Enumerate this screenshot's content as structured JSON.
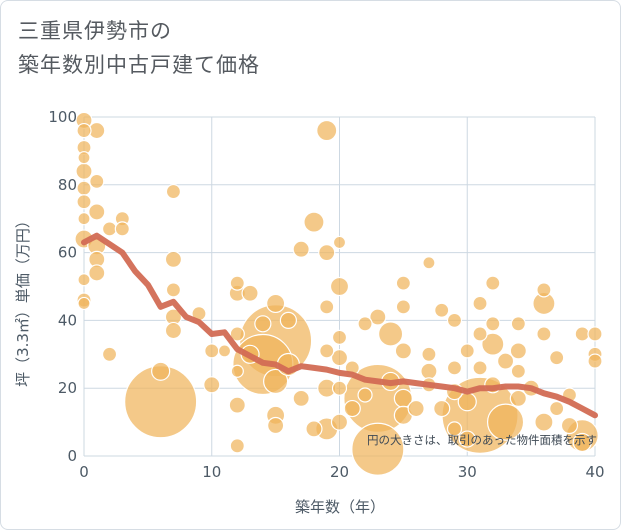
{
  "title_lines": [
    "三重県伊勢市の",
    "築年数別中古戸建て価格"
  ],
  "colors": {
    "bubble": "#f0b45c",
    "line": "#d26b54",
    "grid": "#cdd8e2",
    "plot_bg": "#ffffff"
  },
  "chart_data": {
    "type": "scatter",
    "title": "三重県伊勢市の築年数別中古戸建て価格",
    "xlabel": "築年数（年）",
    "ylabel": "坪（3.3㎡）単価（万円）",
    "xlim": [
      0,
      40
    ],
    "ylim": [
      0,
      100
    ],
    "x_ticks": [
      0,
      10,
      20,
      30,
      40
    ],
    "y_ticks": [
      0,
      20,
      40,
      60,
      80,
      100
    ],
    "grid": true,
    "annotation": "円の大きさは、取引のあった物件面積を示す",
    "bubbles": [
      {
        "x": 0,
        "y": 99,
        "s": 8
      },
      {
        "x": 0,
        "y": 96,
        "s": 7
      },
      {
        "x": 0,
        "y": 91,
        "s": 7
      },
      {
        "x": 0,
        "y": 88,
        "s": 6
      },
      {
        "x": 0,
        "y": 84,
        "s": 8
      },
      {
        "x": 0,
        "y": 79,
        "s": 7
      },
      {
        "x": 0,
        "y": 75,
        "s": 7
      },
      {
        "x": 0,
        "y": 70,
        "s": 6
      },
      {
        "x": 0,
        "y": 64,
        "s": 9
      },
      {
        "x": 0,
        "y": 52,
        "s": 6
      },
      {
        "x": 0,
        "y": 46,
        "s": 7
      },
      {
        "x": 0,
        "y": 45,
        "s": 6
      },
      {
        "x": 1,
        "y": 96,
        "s": 8
      },
      {
        "x": 1,
        "y": 81,
        "s": 7
      },
      {
        "x": 1,
        "y": 72,
        "s": 8
      },
      {
        "x": 1,
        "y": 62,
        "s": 9
      },
      {
        "x": 1,
        "y": 58,
        "s": 8
      },
      {
        "x": 1,
        "y": 54,
        "s": 8
      },
      {
        "x": 2,
        "y": 30,
        "s": 7
      },
      {
        "x": 2,
        "y": 67,
        "s": 7
      },
      {
        "x": 3,
        "y": 70,
        "s": 7
      },
      {
        "x": 3,
        "y": 67,
        "s": 7
      },
      {
        "x": 6,
        "y": 16,
        "s": 36
      },
      {
        "x": 6,
        "y": 25,
        "s": 9
      },
      {
        "x": 7,
        "y": 78,
        "s": 7
      },
      {
        "x": 7,
        "y": 58,
        "s": 8
      },
      {
        "x": 7,
        "y": 49,
        "s": 7
      },
      {
        "x": 7,
        "y": 41,
        "s": 8
      },
      {
        "x": 7,
        "y": 37,
        "s": 8
      },
      {
        "x": 9,
        "y": 42,
        "s": 7
      },
      {
        "x": 10,
        "y": 31,
        "s": 7
      },
      {
        "x": 10,
        "y": 21,
        "s": 8
      },
      {
        "x": 11,
        "y": 31,
        "s": 6
      },
      {
        "x": 12,
        "y": 51,
        "s": 7
      },
      {
        "x": 12,
        "y": 48,
        "s": 8
      },
      {
        "x": 12,
        "y": 36,
        "s": 7
      },
      {
        "x": 12,
        "y": 25,
        "s": 6
      },
      {
        "x": 12,
        "y": 15,
        "s": 8
      },
      {
        "x": 12,
        "y": 3,
        "s": 7
      },
      {
        "x": 13,
        "y": 48,
        "s": 8
      },
      {
        "x": 13,
        "y": 30,
        "s": 9
      },
      {
        "x": 14,
        "y": 39,
        "s": 8
      },
      {
        "x": 14,
        "y": 27,
        "s": 30
      },
      {
        "x": 15,
        "y": 34,
        "s": 36
      },
      {
        "x": 15,
        "y": 45,
        "s": 9
      },
      {
        "x": 15,
        "y": 22,
        "s": 12
      },
      {
        "x": 15,
        "y": 12,
        "s": 9
      },
      {
        "x": 15,
        "y": 9,
        "s": 8
      },
      {
        "x": 16,
        "y": 40,
        "s": 8
      },
      {
        "x": 16,
        "y": 27,
        "s": 11
      },
      {
        "x": 17,
        "y": 61,
        "s": 8
      },
      {
        "x": 17,
        "y": 17,
        "s": 8
      },
      {
        "x": 18,
        "y": 69,
        "s": 10
      },
      {
        "x": 18,
        "y": 8,
        "s": 8
      },
      {
        "x": 19,
        "y": 96,
        "s": 10
      },
      {
        "x": 19,
        "y": 60,
        "s": 8
      },
      {
        "x": 19,
        "y": 44,
        "s": 7
      },
      {
        "x": 19,
        "y": 31,
        "s": 7
      },
      {
        "x": 19,
        "y": 20,
        "s": 9
      },
      {
        "x": 19,
        "y": 8,
        "s": 11
      },
      {
        "x": 20,
        "y": 63,
        "s": 6
      },
      {
        "x": 20,
        "y": 50,
        "s": 9
      },
      {
        "x": 20,
        "y": 35,
        "s": 7
      },
      {
        "x": 20,
        "y": 29,
        "s": 8
      },
      {
        "x": 20,
        "y": 20,
        "s": 7
      },
      {
        "x": 20,
        "y": 10,
        "s": 8
      },
      {
        "x": 21,
        "y": 26,
        "s": 7
      },
      {
        "x": 21,
        "y": 14,
        "s": 8
      },
      {
        "x": 22,
        "y": 39,
        "s": 7
      },
      {
        "x": 22,
        "y": 18,
        "s": 7
      },
      {
        "x": 23,
        "y": 17,
        "s": 34
      },
      {
        "x": 23,
        "y": 2,
        "s": 26
      },
      {
        "x": 23,
        "y": 41,
        "s": 8
      },
      {
        "x": 24,
        "y": 36,
        "s": 12
      },
      {
        "x": 24,
        "y": 22,
        "s": 9
      },
      {
        "x": 25,
        "y": 51,
        "s": 7
      },
      {
        "x": 25,
        "y": 44,
        "s": 7
      },
      {
        "x": 25,
        "y": 31,
        "s": 8
      },
      {
        "x": 25,
        "y": 17,
        "s": 9
      },
      {
        "x": 25,
        "y": 12,
        "s": 9
      },
      {
        "x": 26,
        "y": 14,
        "s": 8
      },
      {
        "x": 27,
        "y": 57,
        "s": 6
      },
      {
        "x": 27,
        "y": 30,
        "s": 7
      },
      {
        "x": 27,
        "y": 25,
        "s": 8
      },
      {
        "x": 27,
        "y": 21,
        "s": 7
      },
      {
        "x": 28,
        "y": 43,
        "s": 7
      },
      {
        "x": 28,
        "y": 14,
        "s": 8
      },
      {
        "x": 29,
        "y": 40,
        "s": 7
      },
      {
        "x": 29,
        "y": 26,
        "s": 7
      },
      {
        "x": 29,
        "y": 19,
        "s": 8
      },
      {
        "x": 29,
        "y": 8,
        "s": 7
      },
      {
        "x": 30,
        "y": 31,
        "s": 7
      },
      {
        "x": 30,
        "y": 16,
        "s": 9
      },
      {
        "x": 30,
        "y": 5,
        "s": 8
      },
      {
        "x": 31,
        "y": 12,
        "s": 38
      },
      {
        "x": 31,
        "y": 45,
        "s": 7
      },
      {
        "x": 31,
        "y": 36,
        "s": 7
      },
      {
        "x": 31,
        "y": 26,
        "s": 7
      },
      {
        "x": 32,
        "y": 51,
        "s": 7
      },
      {
        "x": 32,
        "y": 39,
        "s": 7
      },
      {
        "x": 32,
        "y": 33,
        "s": 11
      },
      {
        "x": 32,
        "y": 21,
        "s": 8
      },
      {
        "x": 33,
        "y": 28,
        "s": 8
      },
      {
        "x": 33,
        "y": 10,
        "s": 18
      },
      {
        "x": 34,
        "y": 39,
        "s": 7
      },
      {
        "x": 34,
        "y": 31,
        "s": 8
      },
      {
        "x": 34,
        "y": 25,
        "s": 7
      },
      {
        "x": 34,
        "y": 17,
        "s": 8
      },
      {
        "x": 35,
        "y": 20,
        "s": 8
      },
      {
        "x": 36,
        "y": 49,
        "s": 7
      },
      {
        "x": 36,
        "y": 45,
        "s": 11
      },
      {
        "x": 36,
        "y": 36,
        "s": 7
      },
      {
        "x": 36,
        "y": 10,
        "s": 9
      },
      {
        "x": 37,
        "y": 29,
        "s": 7
      },
      {
        "x": 37,
        "y": 14,
        "s": 7
      },
      {
        "x": 38,
        "y": 18,
        "s": 7
      },
      {
        "x": 38,
        "y": 9,
        "s": 8
      },
      {
        "x": 39,
        "y": 36,
        "s": 7
      },
      {
        "x": 39,
        "y": 6,
        "s": 16
      },
      {
        "x": 39,
        "y": 4,
        "s": 9
      },
      {
        "x": 40,
        "y": 36,
        "s": 7
      },
      {
        "x": 40,
        "y": 30,
        "s": 7
      },
      {
        "x": 40,
        "y": 28,
        "s": 7
      }
    ],
    "trend": {
      "x": [
        0,
        1,
        2,
        3,
        4,
        5,
        6,
        7,
        8,
        9,
        10,
        11,
        12,
        13,
        14,
        15,
        16,
        17,
        18,
        19,
        20,
        21,
        22,
        23,
        24,
        25,
        26,
        27,
        28,
        29,
        30,
        31,
        32,
        33,
        34,
        35,
        36,
        37,
        38,
        39,
        40
      ],
      "y": [
        63,
        65,
        62.5,
        60,
        54.5,
        50.5,
        44,
        45.5,
        41,
        39.5,
        36,
        36.5,
        31.5,
        29.5,
        27.5,
        27,
        25,
        26.5,
        26,
        25.5,
        24.5,
        24,
        22.5,
        22,
        21.5,
        22,
        21.5,
        21,
        20.5,
        20,
        19,
        20,
        20,
        20.5,
        20.5,
        20,
        18.5,
        17.5,
        16,
        14,
        12
      ]
    }
  }
}
